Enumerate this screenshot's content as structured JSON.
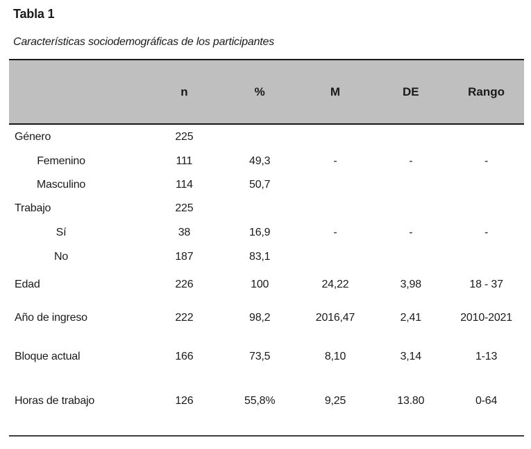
{
  "page": {
    "title": "Tabla 1",
    "subtitle": "Características sociodemográficas de los participantes"
  },
  "table": {
    "headers": {
      "label": "",
      "n": "n",
      "pct": "%",
      "m": "M",
      "de": "DE",
      "rango": "Rango"
    },
    "rows": [
      {
        "label": "Género",
        "n": "225",
        "pct": "",
        "m": "",
        "de": "",
        "rango": ""
      },
      {
        "label": "Femenino",
        "n": "111",
        "pct": "49,3",
        "m": "-",
        "de": "-",
        "rango": "-"
      },
      {
        "label": "Masculino",
        "n": "114",
        "pct": "50,7",
        "m": "",
        "de": "",
        "rango": ""
      },
      {
        "label": "Trabajo",
        "n": "225",
        "pct": "",
        "m": "",
        "de": "",
        "rango": ""
      },
      {
        "label": "Sí",
        "n": "38",
        "pct": "16,9",
        "m": "-",
        "de": "-",
        "rango": "-"
      },
      {
        "label": "No",
        "n": "187",
        "pct": "83,1",
        "m": "",
        "de": "",
        "rango": ""
      },
      {
        "label": "Edad",
        "n": "226",
        "pct": "100",
        "m": "24,22",
        "de": "3,98",
        "rango": "18 - 37"
      },
      {
        "label": "Año de ingreso",
        "n": "222",
        "pct": "98,2",
        "m": "2016,47",
        "de": "2,41",
        "rango": "2010-2021"
      },
      {
        "label": "Bloque actual",
        "n": "166",
        "pct": "73,5",
        "m": "8,10",
        "de": "3,14",
        "rango": "1-13"
      },
      {
        "label": "Horas de trabajo",
        "n": "126",
        "pct": "55,8%",
        "m": "9,25",
        "de": "13.80",
        "rango": "0-64"
      }
    ]
  },
  "colors": {
    "header_band": "#bfbfbf",
    "rule_top": "#161616",
    "rule_bottom": "#3d3d3d",
    "text": "#1a1a1a"
  }
}
